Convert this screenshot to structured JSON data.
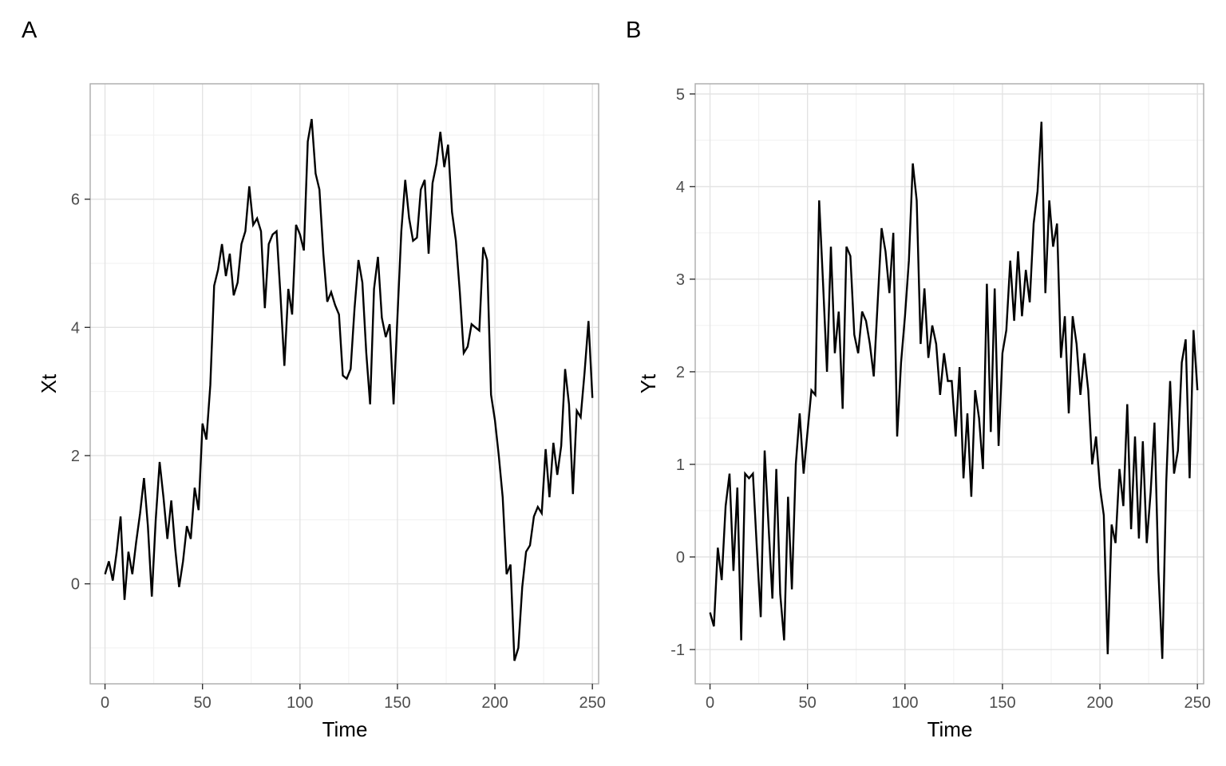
{
  "page": {
    "background": "#ffffff"
  },
  "styles": {
    "series_color": "#000000",
    "grid_major_color": "#e3e3e3",
    "grid_minor_color": "#f0f0f0",
    "panel_border_color": "#ababab",
    "panel_background": "#ffffff",
    "tick_mark_color": "#333333",
    "tick_label_color": "#4d4d4d",
    "title_color": "#000000"
  },
  "chart_data": [
    {
      "type": "line",
      "panel_label": "A",
      "xlabel": "Time",
      "ylabel": "Xt",
      "legend": "none",
      "grid": true,
      "x_ticks": [
        0,
        50,
        100,
        150,
        200,
        250
      ],
      "x_minor": [
        25,
        75,
        125,
        175,
        225
      ],
      "y_ticks": [
        0,
        2,
        4,
        6
      ],
      "y_minor": [
        -1,
        1,
        3,
        5,
        7
      ],
      "x_domain": [
        -7.6,
        253.2
      ],
      "y_domain": [
        -1.56,
        7.8
      ],
      "series": [
        {
          "name": "Xt",
          "t_start": 0,
          "t_step": 2,
          "values": [
            0.15,
            0.35,
            0.05,
            0.5,
            1.05,
            -0.25,
            0.5,
            0.15,
            0.65,
            1.1,
            1.65,
            0.9,
            -0.2,
            1.0,
            1.9,
            1.35,
            0.7,
            1.3,
            0.55,
            -0.05,
            0.35,
            0.9,
            0.7,
            1.5,
            1.15,
            2.5,
            2.25,
            3.1,
            4.65,
            4.9,
            5.3,
            4.8,
            5.15,
            4.5,
            4.7,
            5.3,
            5.5,
            6.2,
            5.6,
            5.7,
            5.5,
            4.3,
            5.3,
            5.45,
            5.5,
            4.5,
            3.4,
            4.6,
            4.2,
            5.6,
            5.45,
            5.2,
            6.9,
            7.25,
            6.4,
            6.15,
            5.15,
            4.4,
            4.55,
            4.35,
            4.2,
            3.25,
            3.2,
            3.35,
            4.3,
            5.05,
            4.7,
            3.6,
            2.8,
            4.6,
            5.1,
            4.15,
            3.85,
            4.05,
            2.8,
            4.15,
            5.5,
            6.3,
            5.7,
            5.35,
            5.4,
            6.15,
            6.3,
            5.15,
            6.25,
            6.55,
            7.05,
            6.5,
            6.85,
            5.8,
            5.35,
            4.55,
            3.6,
            3.7,
            4.05,
            4.0,
            3.95,
            5.25,
            5.05,
            2.95,
            2.55,
            2.0,
            1.35,
            0.15,
            0.3,
            -1.2,
            -1.0,
            -0.05,
            0.5,
            0.6,
            1.05,
            1.2,
            1.1,
            2.1,
            1.35,
            2.2,
            1.7,
            2.15,
            3.35,
            2.8,
            1.4,
            2.7,
            2.6,
            3.3,
            4.1,
            2.9
          ]
        }
      ]
    },
    {
      "type": "line",
      "panel_label": "B",
      "xlabel": "Time",
      "ylabel": "Yt",
      "legend": "none",
      "grid": true,
      "x_ticks": [
        0,
        50,
        100,
        150,
        200,
        250
      ],
      "x_minor": [
        25,
        75,
        125,
        175,
        225
      ],
      "y_ticks": [
        -1,
        0,
        1,
        2,
        3,
        4,
        5
      ],
      "y_minor": [
        -0.5,
        0.5,
        1.5,
        2.5,
        3.5,
        4.5
      ],
      "x_domain": [
        -7.6,
        253.2
      ],
      "y_domain": [
        -1.37,
        5.11
      ],
      "series": [
        {
          "name": "Yt",
          "t_start": 0,
          "t_step": 2,
          "values": [
            -0.6,
            -0.75,
            0.1,
            -0.25,
            0.55,
            0.9,
            -0.15,
            0.75,
            -0.9,
            0.9,
            0.85,
            0.9,
            0.1,
            -0.65,
            1.15,
            0.35,
            -0.45,
            0.95,
            -0.4,
            -0.9,
            0.65,
            -0.35,
            1.0,
            1.55,
            0.9,
            1.35,
            1.8,
            1.75,
            3.85,
            2.95,
            2.0,
            3.35,
            2.2,
            2.65,
            1.6,
            3.35,
            3.25,
            2.4,
            2.2,
            2.65,
            2.55,
            2.3,
            1.95,
            2.75,
            3.55,
            3.3,
            2.85,
            3.5,
            1.3,
            2.1,
            2.6,
            3.2,
            4.25,
            3.85,
            2.3,
            2.9,
            2.15,
            2.5,
            2.3,
            1.75,
            2.2,
            1.9,
            1.9,
            1.3,
            2.05,
            0.85,
            1.55,
            0.65,
            1.8,
            1.5,
            0.95,
            2.95,
            1.35,
            2.9,
            1.2,
            2.2,
            2.45,
            3.2,
            2.55,
            3.3,
            2.6,
            3.1,
            2.75,
            3.6,
            3.95,
            4.7,
            2.85,
            3.85,
            3.35,
            3.6,
            2.15,
            2.6,
            1.55,
            2.6,
            2.3,
            1.75,
            2.2,
            1.8,
            1.0,
            1.3,
            0.75,
            0.45,
            -1.05,
            0.35,
            0.15,
            0.95,
            0.55,
            1.65,
            0.3,
            1.3,
            0.2,
            1.25,
            0.15,
            0.7,
            1.45,
            -0.15,
            -1.1,
            0.8,
            1.9,
            0.9,
            1.15,
            2.1,
            2.35,
            0.85,
            2.45,
            1.8
          ]
        }
      ]
    }
  ]
}
